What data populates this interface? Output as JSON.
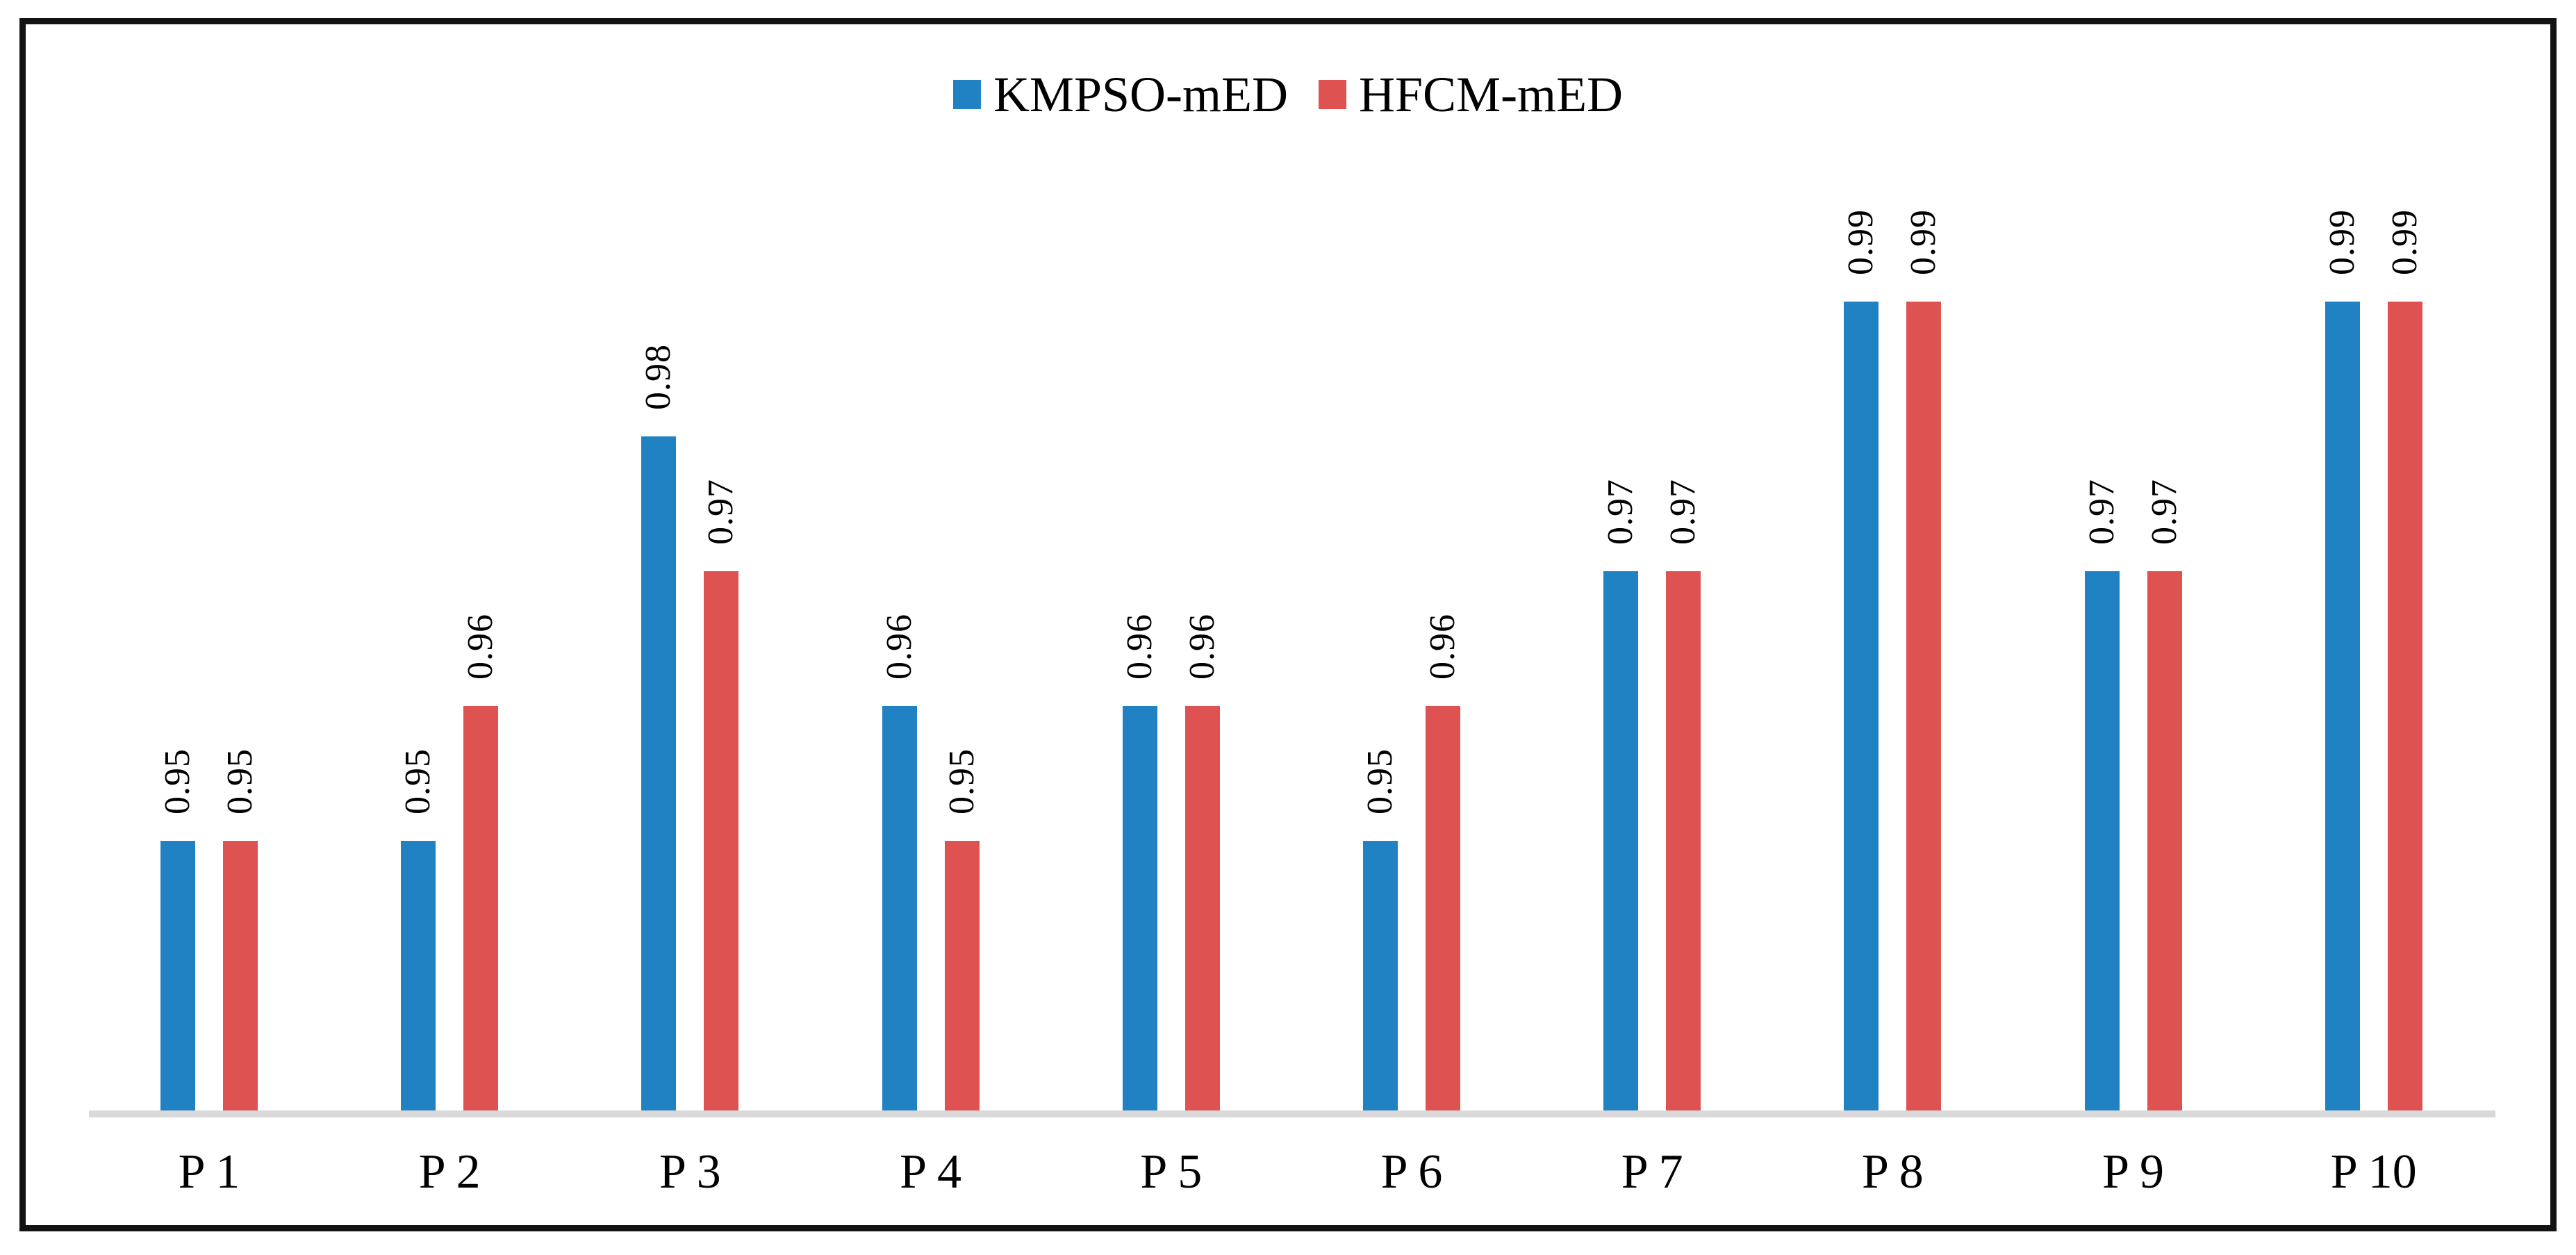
{
  "chart_data": {
    "type": "bar",
    "title": "",
    "xlabel": "",
    "ylabel": "",
    "categories": [
      "P 1",
      "P 2",
      "P 3",
      "P 4",
      "P 5",
      "P 6",
      "P 7",
      "P 8",
      "P 9",
      "P 10"
    ],
    "series": [
      {
        "name": "KMPSO-mED",
        "color": "#2081C3",
        "values": [
          0.95,
          0.95,
          0.98,
          0.96,
          0.96,
          0.95,
          0.97,
          0.99,
          0.97,
          0.99
        ]
      },
      {
        "name": "HFCM-mED",
        "color": "#DE5252",
        "values": [
          0.95,
          0.96,
          0.97,
          0.95,
          0.96,
          0.96,
          0.97,
          0.99,
          0.97,
          0.99
        ]
      }
    ],
    "data_labels": {
      "shown": true,
      "rotated_degrees": 90,
      "format": "0.00"
    },
    "ylim": [
      0.93,
      1.0
    ],
    "grid": false,
    "y_axis_shown": false,
    "legend_position": "top",
    "axis_line_color": "#D9D9D9",
    "frame_border_color": "#131313",
    "background_color": "#FFFFFF",
    "label_color": "#000000"
  }
}
